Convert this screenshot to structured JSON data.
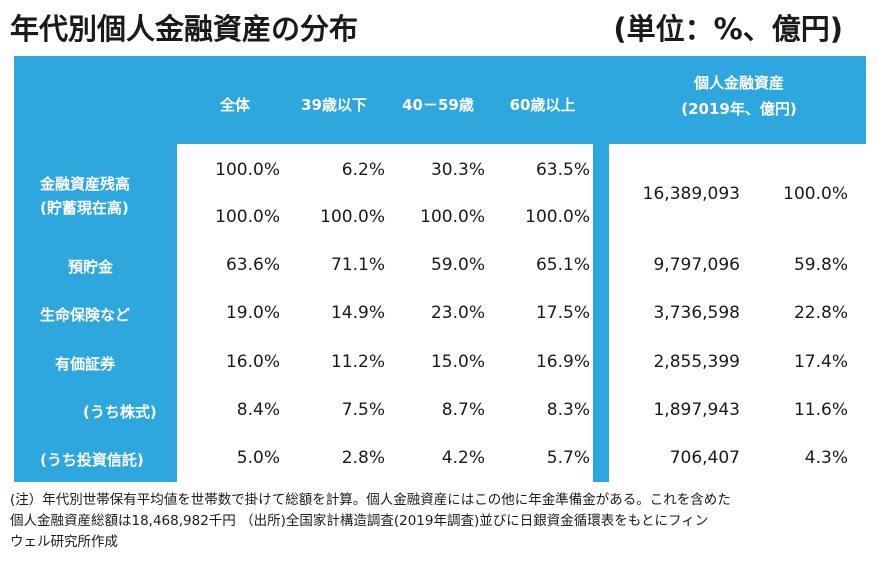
{
  "title": "年代別個人金融資産の分布",
  "unit": "(単位：%、億円)",
  "headers": {
    "cols": [
      "全体",
      "39歳以下",
      "40－59歳",
      "60歳以上"
    ],
    "right_line1": "個人金融資産",
    "right_line2": "(2019年、億円)"
  },
  "rows": [
    {
      "label_line1": "金融資産残高",
      "label_line2": "(貯蓄現在高)",
      "values": [
        "100.0%",
        "6.2%",
        "30.3%",
        "63.5%"
      ],
      "values2": [
        "100.0%",
        "100.0%",
        "100.0%",
        "100.0%"
      ],
      "amount": "16,389,093",
      "share": "100.0%"
    },
    {
      "label": "預貯金",
      "values": [
        "63.6%",
        "71.1%",
        "59.0%",
        "65.1%"
      ],
      "amount": "9,797,096",
      "share": "59.8%"
    },
    {
      "label": "生命保険など",
      "values": [
        "19.0%",
        "14.9%",
        "23.0%",
        "17.5%"
      ],
      "amount": "3,736,598",
      "share": "22.8%"
    },
    {
      "label": "有価証券",
      "values": [
        "16.0%",
        "11.2%",
        "15.0%",
        "16.9%"
      ],
      "amount": "2,855,399",
      "share": "17.4%"
    },
    {
      "label": "(うち株式)",
      "values": [
        "8.4%",
        "7.5%",
        "8.7%",
        "8.3%"
      ],
      "amount": "1,897,943",
      "share": "11.6%"
    },
    {
      "label": "(うち投資信託)",
      "values": [
        "5.0%",
        "2.8%",
        "4.2%",
        "5.7%"
      ],
      "amount": "706,407",
      "share": "4.3%"
    }
  ],
  "note": {
    "line1": "(注）年代別世帯保有平均値を世帯数で掛けて総額を計算。個人金融資産にはこの他に年金準備金がある。これを含めた",
    "line2": "個人金融資産総額は18,468,982千円 （出所)全国家計構造調査(2019年調査)並びに日銀資金循環表をもとにフィン",
    "line3": "ウェル研究所作成"
  },
  "colors": {
    "accent": "#2ea7df"
  }
}
